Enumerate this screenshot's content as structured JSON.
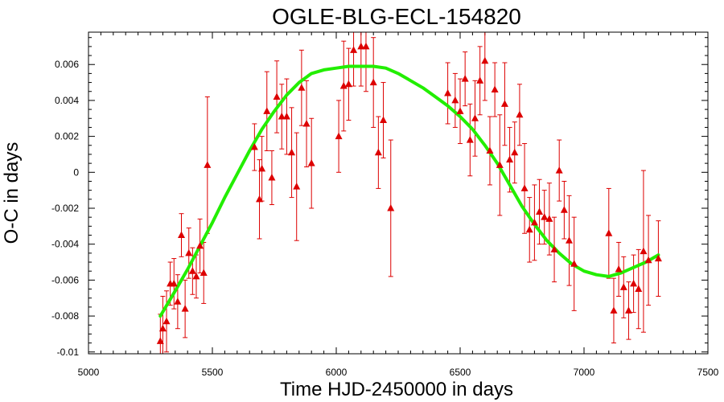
{
  "chart_data": {
    "type": "scatter",
    "title": "OGLE-BLG-ECL-154820",
    "xlabel": "Time HJD-2450000 in days",
    "ylabel": "O-C in days",
    "xlim": [
      5000,
      7500
    ],
    "ylim": [
      -0.0101,
      0.0078
    ],
    "x_ticks": [
      5000,
      5500,
      6000,
      6500,
      7000,
      7500
    ],
    "x_tick_labels": [
      "5000",
      "5500",
      "6000",
      "6500",
      "7000",
      "7500"
    ],
    "y_ticks": [
      -0.01,
      -0.008,
      -0.006,
      -0.004,
      -0.002,
      0,
      0.002,
      0.004,
      0.006
    ],
    "y_tick_labels": [
      "-0.01",
      "-0.008",
      "-0.006",
      "-0.004",
      "-0.002",
      "0",
      "0.002",
      "0.004",
      "0.006"
    ],
    "grid": false,
    "colors": {
      "points": "#dd0000",
      "fit": "#22ee00",
      "axes": "#000000"
    },
    "series": [
      {
        "kind": "points_with_error_bars",
        "x": [
          5290,
          5300,
          5315,
          5330,
          5345,
          5360,
          5375,
          5390,
          5405,
          5420,
          5435,
          5450,
          5465,
          5480,
          5670,
          5690,
          5700,
          5720,
          5740,
          5760,
          5780,
          5800,
          5820,
          5840,
          5860,
          5880,
          5900,
          6010,
          6030,
          6050,
          6070,
          6100,
          6120,
          6150,
          6170,
          6190,
          6220,
          6450,
          6480,
          6500,
          6520,
          6540,
          6560,
          6580,
          6600,
          6620,
          6640,
          6660,
          6680,
          6700,
          6720,
          6740,
          6760,
          6780,
          6800,
          6820,
          6840,
          6860,
          6880,
          6900,
          6920,
          6940,
          6960,
          7100,
          7120,
          7140,
          7160,
          7180,
          7200,
          7220,
          7240,
          7260,
          7300
        ],
        "y": [
          -0.0094,
          -0.0087,
          -0.0083,
          -0.0062,
          -0.0062,
          -0.0072,
          -0.0035,
          -0.0076,
          -0.0045,
          -0.0055,
          -0.0058,
          -0.0041,
          -0.0056,
          0.0004,
          0.0014,
          -0.0015,
          0.0002,
          0.0034,
          -0.0003,
          0.0042,
          0.0031,
          0.0031,
          0.0011,
          -0.0008,
          0.0047,
          0.0027,
          0.0005,
          0.002,
          0.0048,
          0.0049,
          0.0068,
          0.007,
          0.007,
          0.005,
          0.0011,
          0.0029,
          -0.002,
          0.0044,
          0.004,
          0.0034,
          0.0052,
          0.0018,
          0.003,
          0.0051,
          0.0062,
          0.0012,
          0.0046,
          0.0004,
          0.0038,
          0.0007,
          0.0011,
          0.0032,
          -0.0009,
          -0.0032,
          -0.0028,
          -0.0022,
          -0.0025,
          -0.0026,
          -0.0043,
          0.0001,
          -0.0021,
          -0.0038,
          -0.0051,
          -0.0034,
          -0.0077,
          -0.0054,
          -0.0064,
          -0.0077,
          -0.0062,
          -0.0065,
          -0.0044,
          -0.0049,
          -0.0048
        ],
        "yerr": [
          0.0015,
          0.0018,
          0.0017,
          0.0012,
          0.0014,
          0.0015,
          0.0012,
          0.0016,
          0.0014,
          0.0013,
          0.0012,
          0.0015,
          0.0017,
          0.0038,
          0.0013,
          0.0022,
          0.0018,
          0.0022,
          0.0015,
          0.002,
          0.0018,
          0.0021,
          0.0025,
          0.003,
          0.0021,
          0.0024,
          0.0025,
          0.002,
          0.0025,
          0.002,
          0.002,
          0.0022,
          0.0025,
          0.0025,
          0.002,
          0.0021,
          0.0038,
          0.0017,
          0.0015,
          0.0018,
          0.0015,
          0.002,
          0.0021,
          0.0019,
          0.0022,
          0.0019,
          0.0015,
          0.0028,
          0.0023,
          0.0018,
          0.0017,
          0.0017,
          0.0025,
          0.0018,
          0.0021,
          0.0018,
          0.0015,
          0.002,
          0.0018,
          0.0017,
          0.0016,
          0.0025,
          0.0026,
          0.0025,
          0.0018,
          0.0015,
          0.0017,
          0.0016,
          0.0016,
          0.0022,
          0.0045,
          0.0025,
          0.0021
        ]
      },
      {
        "kind": "fit_curve",
        "x": [
          5290,
          5350,
          5400,
          5450,
          5500,
          5550,
          5600,
          5650,
          5700,
          5750,
          5800,
          5850,
          5900,
          5950,
          6000,
          6050,
          6100,
          6150,
          6200,
          6250,
          6300,
          6350,
          6400,
          6450,
          6500,
          6550,
          6600,
          6650,
          6700,
          6750,
          6800,
          6850,
          6900,
          6950,
          7000,
          7050,
          7100,
          7150,
          7200,
          7250,
          7300
        ],
        "y": [
          -0.008,
          -0.0066,
          -0.0054,
          -0.0041,
          -0.0028,
          -0.0014,
          -0.0001,
          0.0012,
          0.0024,
          0.0034,
          0.0043,
          0.005,
          0.0055,
          0.0057,
          0.0058,
          0.0059,
          0.0059,
          0.0059,
          0.0058,
          0.0055,
          0.0051,
          0.0047,
          0.0042,
          0.0037,
          0.0031,
          0.0024,
          0.0015,
          0.0005,
          -0.0007,
          -0.0019,
          -0.0029,
          -0.0038,
          -0.0045,
          -0.0051,
          -0.0055,
          -0.0057,
          -0.0058,
          -0.0056,
          -0.0053,
          -0.005,
          -0.0046
        ]
      }
    ]
  }
}
